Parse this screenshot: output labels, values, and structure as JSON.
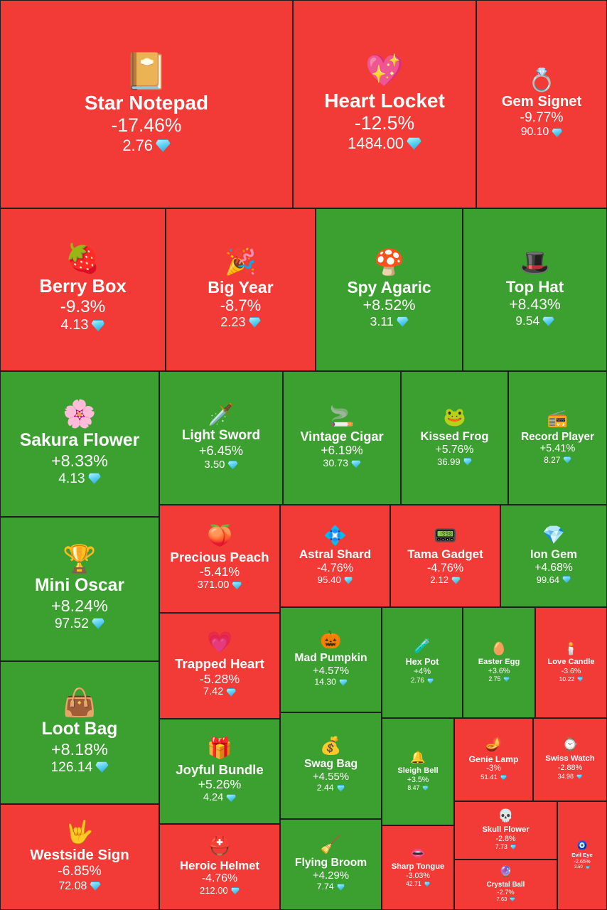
{
  "chart_data": {
    "type": "treemap",
    "currency_icon": "diamond-icon",
    "colors": {
      "negative": "#f23a36",
      "positive": "#3ba02f",
      "border": "#1e1e1e",
      "text": "#ffffff"
    },
    "items": [
      {
        "name": "Star Notepad",
        "change": "-17.46%",
        "price": "2.76",
        "icon": "📔"
      },
      {
        "name": "Heart Locket",
        "change": "-12.5%",
        "price": "1484.00",
        "icon": "💖"
      },
      {
        "name": "Gem Signet",
        "change": "-9.77%",
        "price": "90.10",
        "icon": "💍"
      },
      {
        "name": "Berry Box",
        "change": "-9.3%",
        "price": "4.13",
        "icon": "🍓"
      },
      {
        "name": "Big Year",
        "change": "-8.7%",
        "price": "2.23",
        "icon": "🎉"
      },
      {
        "name": "Spy Agaric",
        "change": "+8.52%",
        "price": "3.11",
        "icon": "🍄"
      },
      {
        "name": "Top Hat",
        "change": "+8.43%",
        "price": "9.54",
        "icon": "🎩"
      },
      {
        "name": "Sakura Flower",
        "change": "+8.33%",
        "price": "4.13",
        "icon": "🌸"
      },
      {
        "name": "Light Sword",
        "change": "+6.45%",
        "price": "3.50",
        "icon": "🗡️"
      },
      {
        "name": "Vintage Cigar",
        "change": "+6.19%",
        "price": "30.73",
        "icon": "🚬"
      },
      {
        "name": "Kissed Frog",
        "change": "+5.76%",
        "price": "36.99",
        "icon": "🐸"
      },
      {
        "name": "Record Player",
        "change": "+5.41%",
        "price": "8.27",
        "icon": "📻"
      },
      {
        "name": "Mini Oscar",
        "change": "+8.24%",
        "price": "97.52",
        "icon": "🏆"
      },
      {
        "name": "Precious Peach",
        "change": "-5.41%",
        "price": "371.00",
        "icon": "🍑"
      },
      {
        "name": "Astral Shard",
        "change": "-4.76%",
        "price": "95.40",
        "icon": "💠"
      },
      {
        "name": "Tama Gadget",
        "change": "-4.76%",
        "price": "2.12",
        "icon": "📟"
      },
      {
        "name": "Ion Gem",
        "change": "+4.68%",
        "price": "99.64",
        "icon": "💎"
      },
      {
        "name": "Loot Bag",
        "change": "+8.18%",
        "price": "126.14",
        "icon": "👜"
      },
      {
        "name": "Trapped Heart",
        "change": "-5.28%",
        "price": "7.42",
        "icon": "💗"
      },
      {
        "name": "Mad Pumpkin",
        "change": "+4.57%",
        "price": "14.30",
        "icon": "🎃"
      },
      {
        "name": "Hex Pot",
        "change": "+4%",
        "price": "2.76",
        "icon": "🧪"
      },
      {
        "name": "Easter Egg",
        "change": "+3.6%",
        "price": "2.75",
        "icon": "🥚"
      },
      {
        "name": "Love Candle",
        "change": "-3.6%",
        "price": "10.22",
        "icon": "🕯️"
      },
      {
        "name": "Joyful Bundle",
        "change": "+5.26%",
        "price": "4.24",
        "icon": "🎁"
      },
      {
        "name": "Swag Bag",
        "change": "+4.55%",
        "price": "2.44",
        "icon": "💰"
      },
      {
        "name": "Sleigh Bell",
        "change": "+3.5%",
        "price": "8.47",
        "icon": "🔔"
      },
      {
        "name": "Genie Lamp",
        "change": "-3%",
        "price": "51.41",
        "icon": "🪔"
      },
      {
        "name": "Swiss Watch",
        "change": "-2.88%",
        "price": "34.98",
        "icon": "⌚"
      },
      {
        "name": "Westside Sign",
        "change": "-6.85%",
        "price": "72.08",
        "icon": "🤟"
      },
      {
        "name": "Heroic Helmet",
        "change": "-4.76%",
        "price": "212.00",
        "icon": "⛑️"
      },
      {
        "name": "Flying Broom",
        "change": "+4.29%",
        "price": "7.74",
        "icon": "🧹"
      },
      {
        "name": "Sharp Tongue",
        "change": "-3.03%",
        "price": "42.71",
        "icon": "👄"
      },
      {
        "name": "Skull Flower",
        "change": "-2.8%",
        "price": "7.73",
        "icon": "💀"
      },
      {
        "name": "Evil Eye",
        "change": "-2.65%",
        "price": "3.50",
        "icon": "🧿"
      },
      {
        "name": "Crystal Ball",
        "change": "-2.7%",
        "price": "7.63",
        "icon": "🔮"
      }
    ]
  }
}
